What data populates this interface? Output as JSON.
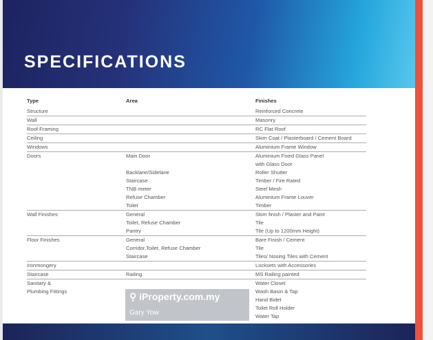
{
  "title": "SPECIFICATIONS",
  "headers": {
    "type": "Type",
    "area": "Area",
    "finishes": "Finishes"
  },
  "groups": [
    {
      "rows": [
        [
          "Structure",
          "",
          "Reinforced Concrete"
        ]
      ]
    },
    {
      "rows": [
        [
          "Wall",
          "",
          "Masonry"
        ]
      ]
    },
    {
      "rows": [
        [
          "Roof Framing",
          "",
          "RC Flat Roof"
        ]
      ]
    },
    {
      "rows": [
        [
          "Ceiling",
          "",
          "Skim Coat / Plasterboard / Cement Board"
        ]
      ]
    },
    {
      "rows": [
        [
          "Windows",
          "",
          "Aluminium Frame Window"
        ]
      ]
    },
    {
      "rows": [
        [
          "Doors",
          "Main Door",
          "Aluminium Fixed Glass Panel"
        ],
        [
          "",
          "",
          "with Glass Door"
        ],
        [
          "",
          "Backlane/Sidelane",
          "Roller Shutter"
        ],
        [
          "",
          "Staircase",
          "Timber / Fire Rated"
        ],
        [
          "",
          "TNB meter",
          "Steel Mesh"
        ],
        [
          "",
          "Refuse Chamber",
          "Aluminium Frame Louver"
        ],
        [
          "",
          "Toilet",
          "Timber"
        ]
      ]
    },
    {
      "rows": [
        [
          "Wall Finishes",
          "General",
          "Skim finish / Plaster and Paint"
        ],
        [
          "",
          "Toilet, Refuse Chamber",
          "Tile"
        ],
        [
          "",
          "Pantry",
          "Tile (Up to 1200mm Height)"
        ]
      ]
    },
    {
      "rows": [
        [
          "Floor Finishes",
          "General",
          "Bare Finish / Cement"
        ],
        [
          "",
          "Corridor,Toilet, Refuse Chamber",
          "Tile"
        ],
        [
          "",
          "Staircase",
          "Tiles/ Nosing Tiles with Cement"
        ]
      ]
    },
    {
      "rows": [
        [
          "Ironmongery",
          "",
          "Locksets with Accessories"
        ]
      ]
    },
    {
      "rows": [
        [
          "Staircase",
          "Railing",
          "MS Railing painted"
        ]
      ]
    },
    {
      "rows": [
        [
          "Sanitary &",
          "",
          "Water Closet"
        ],
        [
          "Plumbing Fittings",
          "",
          "Wash Basin & Tap"
        ],
        [
          "",
          "",
          "Hand Bidet"
        ],
        [
          "",
          "",
          "Toilet Roll Holder"
        ],
        [
          "",
          "",
          "Water Tap"
        ]
      ],
      "noline": true
    }
  ],
  "watermark": {
    "site": "iProperty.com.my",
    "agent": "Gary Yow",
    "icon": "location-pin-icon"
  },
  "colors": {
    "accent": "#ef513a",
    "banner_dark": "#1d2360",
    "banner_light": "#58c8ee"
  }
}
